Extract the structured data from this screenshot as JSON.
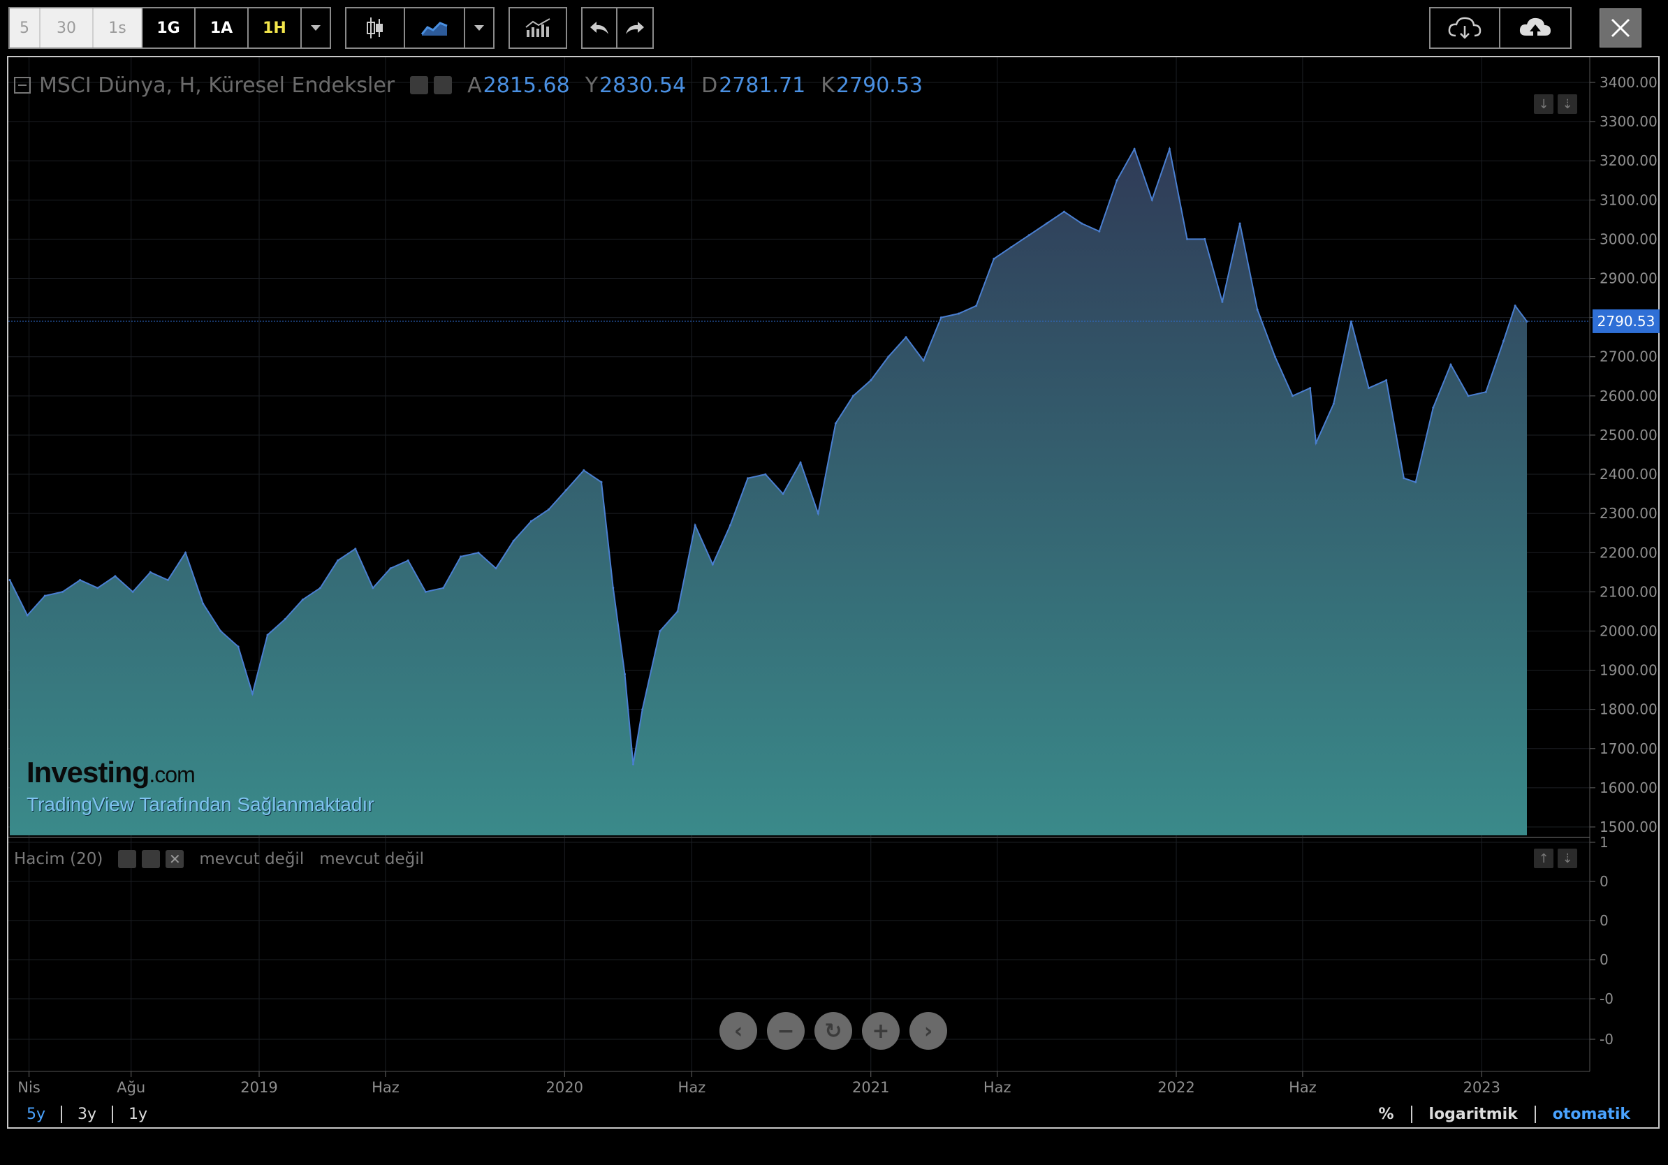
{
  "toolbar": {
    "intervals": [
      "5",
      "30",
      "1s",
      "1G",
      "1A",
      "1H"
    ],
    "active_interval": "1H"
  },
  "legend": {
    "title": "MSCI Dünya, H, Küresel Endeksler",
    "open_label": "A",
    "open": "2815.68",
    "high_label": "Y",
    "high": "2830.54",
    "low_label": "D",
    "low": "2781.71",
    "close_label": "K",
    "close": "2790.53"
  },
  "volume_legend": {
    "title": "Hacim (20)",
    "value1": "mevcut değil",
    "value2": "mevcut değil"
  },
  "watermark": {
    "brand": "Investing",
    "brand_suffix": ".com",
    "provider": "TradingView Tarafından Sağlanmaktadır"
  },
  "ranges": [
    "5y",
    "3y",
    "1y"
  ],
  "active_range": "5y",
  "scale_options": [
    "%",
    "logaritmik",
    "otomatik"
  ],
  "active_scale": "otomatik",
  "colors": {
    "line": "#4a7fd1",
    "area_top": "#2f3b57",
    "area_bottom": "#3a8a8a",
    "last_price_badge": "#2f6fd6",
    "axis_text": "#8f8f8f",
    "grid": "#1c1f24"
  },
  "chart_data": {
    "type": "area",
    "title": "MSCI Dünya, H, Küresel Endeksler",
    "x_tick_labels": [
      "Nis",
      "Ağu",
      "2019",
      "Haz",
      "2020",
      "Haz",
      "2021",
      "Haz",
      "2022",
      "Haz",
      "2023"
    ],
    "y_tick_labels": [
      "3400.00",
      "3300.00",
      "3200.00",
      "3100.00",
      "3000.00",
      "2900.00",
      "2800.00",
      "2700.00",
      "2600.00",
      "2500.00",
      "2400.00",
      "2300.00",
      "2200.00",
      "2100.00",
      "2000.00",
      "1900.00",
      "1800.00",
      "1700.00",
      "1600.00",
      "1500.00"
    ],
    "ylim": [
      1480,
      3450
    ],
    "last_value": 2790.53,
    "last_value_label": "2790.53",
    "volume_axis_labels": [
      "1",
      "0",
      "0",
      "0",
      "-0",
      "-0"
    ],
    "series": [
      {
        "x": [
          "2018-03-09",
          "2018-03-30",
          "2018-04-20",
          "2018-05-11",
          "2018-06-01",
          "2018-06-22",
          "2018-07-13",
          "2018-08-03",
          "2018-08-24",
          "2018-09-14",
          "2018-10-05",
          "2018-10-26",
          "2018-11-16",
          "2018-12-07",
          "2018-12-24",
          "2019-01-11",
          "2019-02-01",
          "2019-02-22",
          "2019-03-15",
          "2019-04-05",
          "2019-04-26",
          "2019-05-17",
          "2019-06-07",
          "2019-06-28",
          "2019-07-19",
          "2019-08-09",
          "2019-08-30",
          "2019-09-20",
          "2019-10-11",
          "2019-11-01",
          "2019-11-22",
          "2019-12-13",
          "2020-01-03",
          "2020-01-24",
          "2020-02-14",
          "2020-02-28",
          "2020-03-13",
          "2020-03-23",
          "2020-04-03",
          "2020-04-24",
          "2020-05-15",
          "2020-06-05",
          "2020-06-26",
          "2020-07-17",
          "2020-08-07",
          "2020-08-28",
          "2020-09-18",
          "2020-10-09",
          "2020-10-30",
          "2020-11-20",
          "2020-12-11",
          "2021-01-01",
          "2021-01-22",
          "2021-02-12",
          "2021-03-05",
          "2021-03-26",
          "2021-04-16",
          "2021-05-07",
          "2021-05-28",
          "2021-06-18",
          "2021-07-09",
          "2021-07-30",
          "2021-08-20",
          "2021-09-10",
          "2021-10-01",
          "2021-10-22",
          "2021-11-12",
          "2021-12-03",
          "2021-12-24",
          "2022-01-14",
          "2022-02-04",
          "2022-02-25",
          "2022-03-18",
          "2022-04-08",
          "2022-04-29",
          "2022-05-20",
          "2022-06-10",
          "2022-06-17",
          "2022-07-08",
          "2022-07-29",
          "2022-08-19",
          "2022-09-09",
          "2022-09-30",
          "2022-10-14",
          "2022-11-04",
          "2022-11-25",
          "2022-12-16",
          "2023-01-06",
          "2023-01-27",
          "2023-02-10",
          "2023-02-24"
        ],
        "y": [
          2130,
          2040,
          2090,
          2100,
          2130,
          2110,
          2140,
          2100,
          2150,
          2130,
          2200,
          2070,
          2000,
          1960,
          1840,
          1990,
          2030,
          2080,
          2110,
          2180,
          2210,
          2110,
          2160,
          2180,
          2100,
          2110,
          2190,
          2200,
          2160,
          2230,
          2280,
          2310,
          2360,
          2410,
          2380,
          2110,
          1890,
          1660,
          1800,
          2000,
          2050,
          2270,
          2170,
          2270,
          2390,
          2400,
          2350,
          2430,
          2300,
          2530,
          2600,
          2640,
          2700,
          2750,
          2690,
          2800,
          2810,
          2830,
          2950,
          2980,
          3010,
          3040,
          3070,
          3040,
          3020,
          3150,
          3230,
          3100,
          3230,
          3000,
          3000,
          2840,
          3040,
          2820,
          2700,
          2600,
          2620,
          2480,
          2580,
          2790,
          2620,
          2640,
          2390,
          2380,
          2570,
          2680,
          2600,
          2610,
          2740,
          2830,
          2790
        ]
      }
    ]
  }
}
